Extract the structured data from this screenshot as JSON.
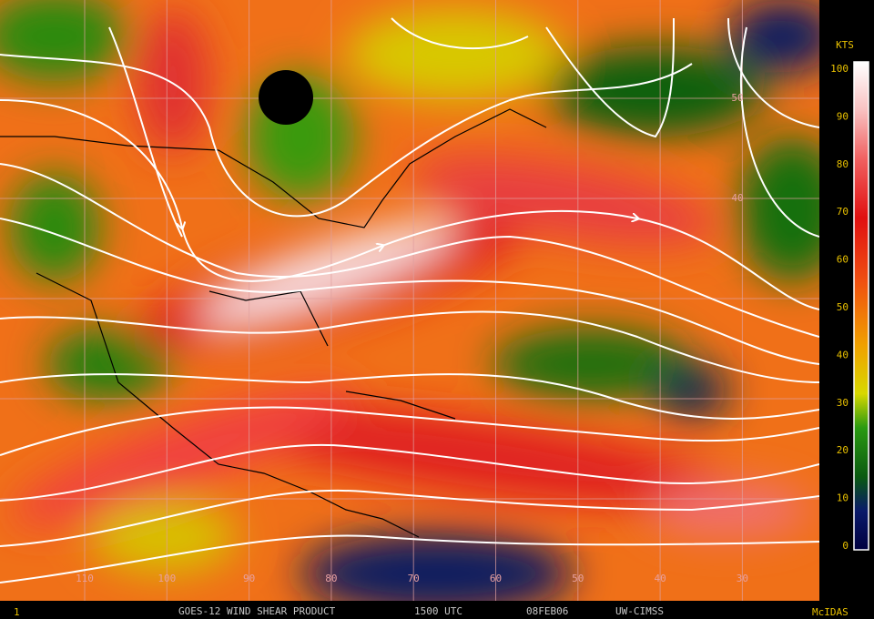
{
  "footer": {
    "frame": "1",
    "product": "GOES-12 WIND SHEAR PRODUCT",
    "time": "1500 UTC",
    "date": "08FEB06",
    "source": "UW-CIMSS",
    "software": "McIDAS"
  },
  "colorbar": {
    "unit": "KTS",
    "range": [
      0,
      100
    ],
    "ticks": [
      0,
      10,
      20,
      30,
      40,
      50,
      60,
      70,
      80,
      90,
      100
    ]
  },
  "map": {
    "longitude_labels": [
      110,
      100,
      90,
      80,
      70,
      60,
      50,
      40,
      30
    ],
    "latitude_labels": [
      50,
      40
    ]
  }
}
